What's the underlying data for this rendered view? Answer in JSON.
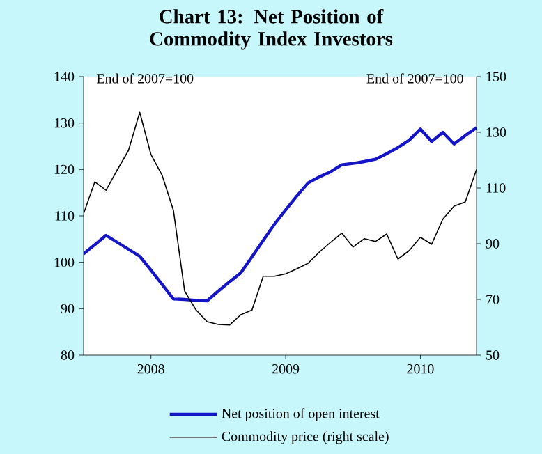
{
  "chart_data": {
    "type": "line",
    "title": "Chart 13: Net Position of Commodity Index Investors",
    "annotations": [
      "End of 2007=100",
      "End of 2007=100"
    ],
    "x": [
      "2008-01",
      "2008-02",
      "2008-03",
      "2008-04",
      "2008-05",
      "2008-06",
      "2008-07",
      "2008-08",
      "2008-09",
      "2008-10",
      "2008-11",
      "2008-12",
      "2009-01",
      "2009-02",
      "2009-03",
      "2009-04",
      "2009-05",
      "2009-06",
      "2009-07",
      "2009-08",
      "2009-09",
      "2009-10",
      "2009-11",
      "2009-12",
      "2010-01",
      "2010-02",
      "2010-03",
      "2010-04",
      "2010-05",
      "2010-06",
      "2010-07",
      "2010-08",
      "2010-09",
      "2010-10",
      "2010-11",
      "2010-12"
    ],
    "xlim": [
      "2008-01",
      "2010-12"
    ],
    "xticks": [
      {
        "value": "2008-07",
        "label": "2008"
      },
      {
        "value": "2009-07",
        "label": "2009"
      },
      {
        "value": "2010-07",
        "label": "2010"
      }
    ],
    "ylim": [
      80,
      140
    ],
    "yticks": [
      80,
      90,
      100,
      110,
      120,
      130,
      140
    ],
    "y2lim": [
      50,
      150
    ],
    "y2ticks": [
      50,
      70,
      90,
      110,
      130,
      150
    ],
    "series": [
      {
        "name": "Net position of open interest",
        "color": "#1414c8",
        "values": [
          101.8,
          103.8,
          105.8,
          104.3,
          102.8,
          101.3,
          98.3,
          95.2,
          92.1,
          92,
          91.8,
          91.7,
          93.8,
          95.8,
          97.7,
          101.2,
          104.7,
          108.2,
          111.3,
          114.3,
          117.1,
          118.4,
          119.5,
          121,
          121.3,
          121.7,
          122.2,
          123.4,
          124.7,
          126.3,
          128.7,
          126,
          128,
          125.5,
          127.3,
          129
        ]
      },
      {
        "name": "Commodity price (right scale)",
        "color": "#000000",
        "axis": "y2",
        "values": [
          100.8,
          112.2,
          109.2,
          116.5,
          123.5,
          137.2,
          122,
          114.5,
          102,
          73,
          66.3,
          62,
          61,
          60.8,
          64.5,
          66.2,
          78.3,
          78.3,
          79.2,
          81,
          83,
          87,
          90.5,
          93.8,
          88.8,
          91.8,
          90.8,
          93.5,
          84.5,
          87.5,
          92.3,
          89.8,
          98.8,
          103.5,
          105,
          116.7
        ]
      }
    ],
    "legend": "bottom",
    "marker": "none",
    "line_style": "solid",
    "grid": false
  }
}
